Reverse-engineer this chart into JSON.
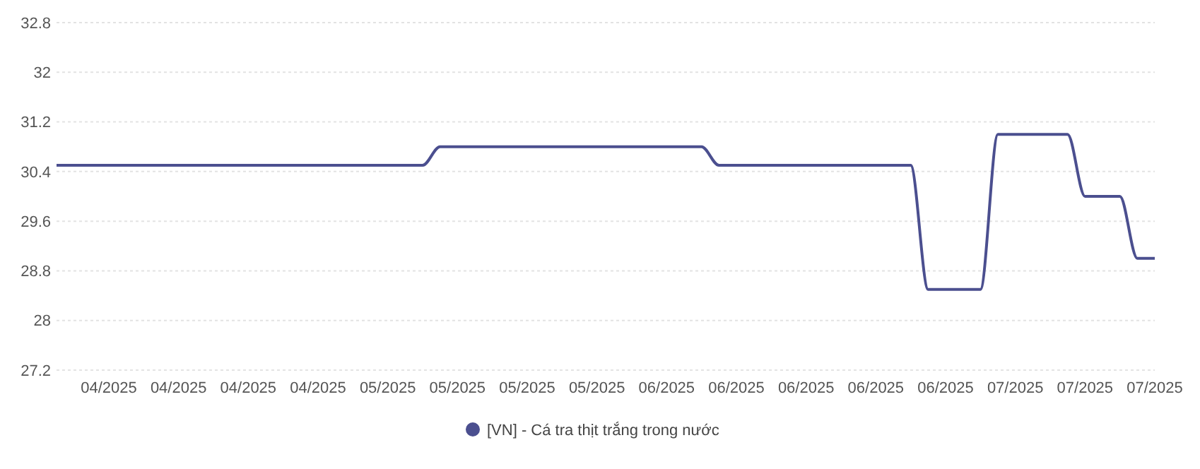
{
  "chart_data": {
    "type": "line",
    "categories": [
      null,
      null,
      null,
      "04/2025",
      null,
      null,
      null,
      "04/2025",
      null,
      null,
      null,
      "04/2025",
      null,
      null,
      null,
      "04/2025",
      null,
      null,
      null,
      "05/2025",
      null,
      null,
      null,
      "05/2025",
      null,
      null,
      null,
      "05/2025",
      null,
      null,
      null,
      "05/2025",
      null,
      null,
      null,
      "06/2025",
      null,
      null,
      null,
      "06/2025",
      null,
      null,
      null,
      "06/2025",
      null,
      null,
      null,
      "06/2025",
      null,
      null,
      null,
      "06/2025",
      null,
      null,
      null,
      "07/2025",
      null,
      null,
      null,
      "07/2025",
      null,
      null,
      null,
      "07/2025"
    ],
    "series": [
      {
        "name": "[VN] - Cá tra thịt trắng trong nước",
        "color": "#4b4f8f",
        "values": [
          30.5,
          30.5,
          30.5,
          30.5,
          30.5,
          30.5,
          30.5,
          30.5,
          30.5,
          30.5,
          30.5,
          30.5,
          30.5,
          30.5,
          30.5,
          30.5,
          30.5,
          30.5,
          30.5,
          30.5,
          30.5,
          30.5,
          30.8,
          30.8,
          30.8,
          30.8,
          30.8,
          30.8,
          30.8,
          30.8,
          30.8,
          30.8,
          30.8,
          30.8,
          30.8,
          30.8,
          30.8,
          30.8,
          30.5,
          30.5,
          30.5,
          30.5,
          30.5,
          30.5,
          30.5,
          30.5,
          30.5,
          30.5,
          30.5,
          30.5,
          28.5,
          28.5,
          28.5,
          28.5,
          31.0,
          31.0,
          31.0,
          31.0,
          31.0,
          30.0,
          30.0,
          30.0,
          29.0,
          29.0
        ]
      }
    ],
    "ylim": [
      27.2,
      32.8
    ],
    "yticks": [
      27.2,
      28,
      28.8,
      29.6,
      30.4,
      31.2,
      32,
      32.8
    ],
    "grid": "y",
    "legend": "bottom",
    "marker": "none",
    "line_style": "solid"
  }
}
